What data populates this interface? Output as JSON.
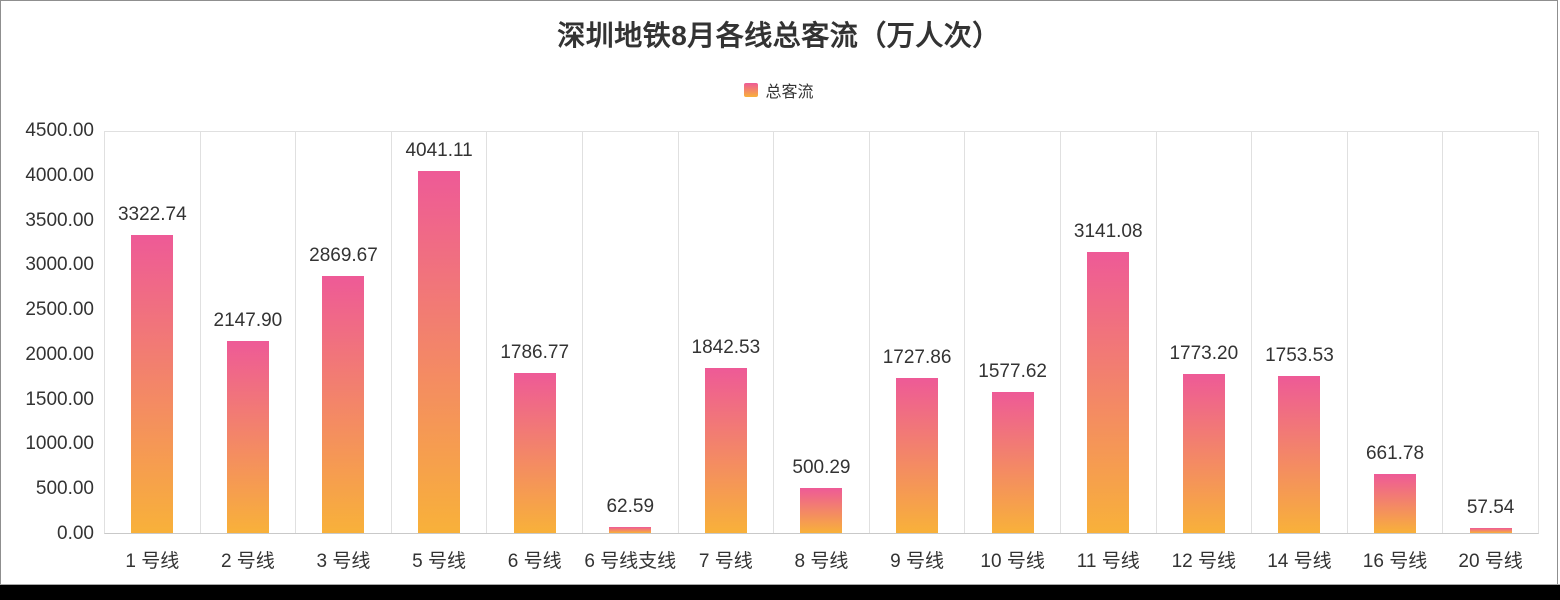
{
  "header": {
    "title": "深圳地铁8月各线总客流（万人次）"
  },
  "legend": {
    "label": "总客流"
  },
  "colors": {
    "bar_gradient_top": "#ee5a97",
    "bar_gradient_bottom": "#f8b13a",
    "text": "#333333",
    "grid_line": "#e0e0e0",
    "axis_line": "#c9c9c9"
  },
  "chart_data": {
    "type": "bar",
    "title": "深圳地铁8月各线总客流（万人次）",
    "legend_entries": [
      "总客流"
    ],
    "legend_position": "top-center",
    "categories": [
      "1 号线",
      "2 号线",
      "3 号线",
      "5 号线",
      "6 号线",
      "6 号线支线",
      "7 号线",
      "8 号线",
      "9 号线",
      "10 号线",
      "11 号线",
      "12 号线",
      "14 号线",
      "16 号线",
      "20 号线"
    ],
    "series": [
      {
        "name": "总客流",
        "values": [
          3322.74,
          2147.9,
          2869.67,
          4041.11,
          1786.77,
          62.59,
          1842.53,
          500.29,
          1727.86,
          1577.62,
          3141.08,
          1773.2,
          1753.53,
          661.78,
          57.54
        ]
      }
    ],
    "value_labels": [
      "3322.74",
      "2147.90",
      "2869.67",
      "4041.11",
      "1786.77",
      "62.59",
      "1842.53",
      "500.29",
      "1727.86",
      "1577.62",
      "3141.08",
      "1773.20",
      "1753.53",
      "661.78",
      "57.54"
    ],
    "xlabel": "",
    "ylabel": "",
    "ylim": [
      0,
      4500
    ],
    "ytick_step": 500,
    "ytick_labels": [
      "4500.00",
      "4000.00",
      "3500.00",
      "3000.00",
      "2500.00",
      "2000.00",
      "1500.00",
      "1000.00",
      "500.00",
      "0.00"
    ],
    "grid": "vertical-category-separators-only"
  }
}
